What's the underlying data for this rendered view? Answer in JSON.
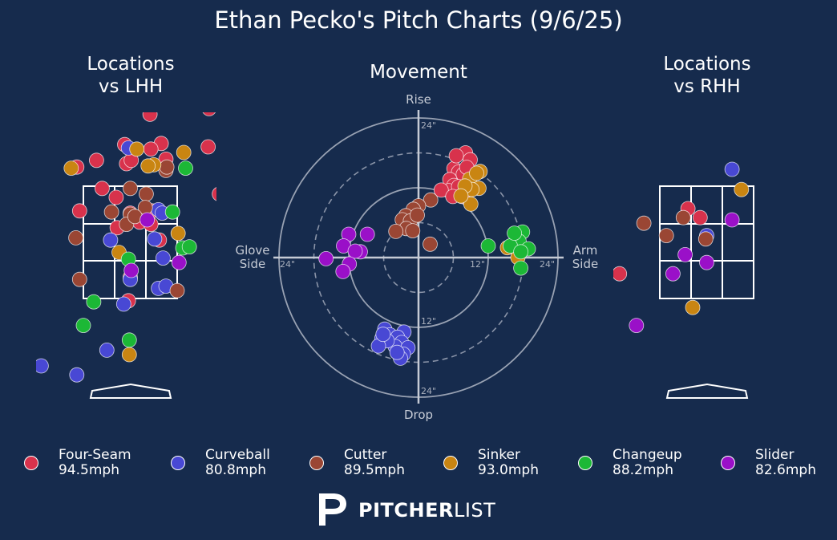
{
  "title": "Ethan Pecko's Pitch Charts (9/6/25)",
  "panels": {
    "lhh": {
      "title_line1": "Locations",
      "title_line2": "vs LHH"
    },
    "movement": {
      "title": "Movement"
    },
    "rhh": {
      "title_line1": "Locations",
      "title_line2": "vs RHH"
    }
  },
  "movement_labels": {
    "top": "Rise",
    "bottom": "Drop",
    "left_line1": "Glove",
    "left_line2": "Side",
    "right_line1": "Arm",
    "right_line2": "Side",
    "ring_labels": {
      "r24_top": "24\"",
      "r24_bottom": "24\"",
      "r12_bottom": "12\"",
      "r12_right": "12\"",
      "r24_right": "24\"",
      "r24_left": "24\""
    }
  },
  "colors": {
    "background": "#162b4d",
    "Four-Seam": "#d8324c",
    "Curveball": "#4848d4",
    "Cutter": "#9a4634",
    "Sinker": "#c98512",
    "Changeup": "#1cb836",
    "Slider": "#9a10c8"
  },
  "legend": [
    {
      "pitch": "Four-Seam",
      "speed": "94.5mph"
    },
    {
      "pitch": "Curveball",
      "speed": "80.8mph"
    },
    {
      "pitch": "Cutter",
      "speed": "89.5mph"
    },
    {
      "pitch": "Sinker",
      "speed": "93.0mph"
    },
    {
      "pitch": "Changeup",
      "speed": "88.2mph"
    },
    {
      "pitch": "Slider",
      "speed": "82.6mph"
    }
  ],
  "brand": {
    "bold": "PITCHER",
    "light": "LIST"
  },
  "chart_data": [
    {
      "type": "scatter",
      "title": "Locations vs LHH",
      "x_unit": "strike-zone widths from center (zone = -0.5..0.5)",
      "y_unit": "strike-zone heights from bottom (zone = 0..1)",
      "xlim": [
        -0.95,
        0.92
      ],
      "ylim": [
        -0.88,
        1.87
      ],
      "points": [
        [
          "Four-Seam",
          -0.17,
          1.74
        ],
        [
          "Four-Seam",
          0.33,
          1.77
        ],
        [
          "Four-Seam",
          0.21,
          1.64
        ],
        [
          "Four-Seam",
          0.84,
          1.69
        ],
        [
          "Four-Seam",
          -0.06,
          1.37
        ],
        [
          "Four-Seam",
          0.33,
          1.38
        ],
        [
          "Four-Seam",
          0.22,
          1.33
        ],
        [
          "Four-Seam",
          -0.36,
          1.23
        ],
        [
          "Four-Seam",
          -0.04,
          1.2
        ],
        [
          "Four-Seam",
          0.01,
          1.23
        ],
        [
          "Four-Seam",
          0.38,
          1.24
        ],
        [
          "Four-Seam",
          0.83,
          1.35
        ],
        [
          "Four-Seam",
          -0.57,
          1.17
        ],
        [
          "Four-Seam",
          -0.3,
          0.98
        ],
        [
          "Four-Seam",
          -0.15,
          0.9
        ],
        [
          "Four-Seam",
          -0.54,
          0.78
        ],
        [
          "Four-Seam",
          0.0,
          0.76
        ],
        [
          "Four-Seam",
          0.1,
          0.68
        ],
        [
          "Four-Seam",
          0.22,
          0.66
        ],
        [
          "Four-Seam",
          -0.14,
          0.63
        ],
        [
          "Four-Seam",
          0.31,
          0.52
        ],
        [
          "Four-Seam",
          0.95,
          0.93
        ],
        [
          "Four-Seam",
          0.0,
          0.19
        ],
        [
          "Four-Seam",
          -0.02,
          -0.02
        ],
        [
          "Four-Seam",
          0.23,
          0.78
        ],
        [
          "Curveball",
          -0.02,
          1.34
        ],
        [
          "Curveball",
          0.3,
          0.79
        ],
        [
          "Curveball",
          0.26,
          0.53
        ],
        [
          "Curveball",
          0.35,
          0.36
        ],
        [
          "Curveball",
          -0.21,
          0.52
        ],
        [
          "Curveball",
          0.0,
          0.17
        ],
        [
          "Curveball",
          0.3,
          0.09
        ],
        [
          "Curveball",
          0.38,
          0.11
        ],
        [
          "Curveball",
          -0.07,
          -0.05
        ],
        [
          "Curveball",
          -0.25,
          -0.46
        ],
        [
          "Curveball",
          -0.57,
          -0.68
        ],
        [
          "Curveball",
          -0.95,
          -0.6
        ],
        [
          "Curveball",
          0.34,
          0.76
        ],
        [
          "Cutter",
          0.38,
          1.14
        ],
        [
          "Cutter",
          0.0,
          0.98
        ],
        [
          "Cutter",
          0.17,
          0.93
        ],
        [
          "Cutter",
          -0.2,
          0.77
        ],
        [
          "Cutter",
          0.0,
          0.75
        ],
        [
          "Cutter",
          -0.04,
          0.66
        ],
        [
          "Cutter",
          0.16,
          0.81
        ],
        [
          "Cutter",
          -0.58,
          0.54
        ],
        [
          "Cutter",
          -0.54,
          0.17
        ],
        [
          "Cutter",
          0.5,
          0.07
        ],
        [
          "Cutter",
          0.39,
          1.17
        ],
        [
          "Cutter",
          0.05,
          0.73
        ],
        [
          "Sinker",
          -0.17,
          1.73
        ],
        [
          "Sinker",
          0.07,
          1.33
        ],
        [
          "Sinker",
          0.25,
          1.19
        ],
        [
          "Sinker",
          0.57,
          1.3
        ],
        [
          "Sinker",
          -0.63,
          1.16
        ],
        [
          "Sinker",
          0.51,
          0.58
        ],
        [
          "Sinker",
          -0.12,
          0.41
        ],
        [
          "Sinker",
          0.19,
          1.18
        ],
        [
          "Sinker",
          -0.01,
          -0.5
        ],
        [
          "Changeup",
          0.59,
          1.16
        ],
        [
          "Changeup",
          0.45,
          0.77
        ],
        [
          "Changeup",
          0.56,
          0.45
        ],
        [
          "Changeup",
          0.63,
          0.46
        ],
        [
          "Changeup",
          -0.02,
          0.35
        ],
        [
          "Changeup",
          -0.39,
          -0.03
        ],
        [
          "Changeup",
          -0.5,
          -0.24
        ],
        [
          "Changeup",
          -0.01,
          -0.37
        ],
        [
          "Slider",
          0.18,
          0.7
        ],
        [
          "Slider",
          0.52,
          0.32
        ],
        [
          "Slider",
          0.01,
          0.25
        ]
      ]
    },
    {
      "type": "scatter",
      "title": "Movement",
      "x_unit": "inches of horizontal break (+ = Arm Side)",
      "y_unit": "inches of induced vertical break (+ = Rise)",
      "xlim": [
        -24,
        24
      ],
      "ylim": [
        -24,
        24
      ],
      "rings": [
        12,
        24
      ],
      "dashed_rings": [
        6,
        18
      ],
      "points": [
        [
          "Four-Seam",
          8.1,
          18.0
        ],
        [
          "Four-Seam",
          8.9,
          16.8
        ],
        [
          "Four-Seam",
          6.1,
          15.3
        ],
        [
          "Four-Seam",
          6.9,
          14.7
        ],
        [
          "Four-Seam",
          5.4,
          13.4
        ],
        [
          "Four-Seam",
          6.1,
          12.4
        ],
        [
          "Four-Seam",
          5.2,
          11.5
        ],
        [
          "Four-Seam",
          6.8,
          11.0
        ],
        [
          "Four-Seam",
          7.5,
          10.5
        ],
        [
          "Four-Seam",
          8.5,
          13.1
        ],
        [
          "Four-Seam",
          3.9,
          11.6
        ],
        [
          "Four-Seam",
          7.7,
          14.3
        ],
        [
          "Four-Seam",
          8.3,
          15.5
        ],
        [
          "Four-Seam",
          6.5,
          17.5
        ],
        [
          "Four-Seam",
          6.9,
          12.2
        ],
        [
          "Four-Seam",
          5.9,
          10.5
        ],
        [
          "Curveball",
          -5.8,
          -12.3
        ],
        [
          "Curveball",
          -4.9,
          -13.3
        ],
        [
          "Curveball",
          -6.3,
          -13.9
        ],
        [
          "Curveball",
          -2.5,
          -12.8
        ],
        [
          "Curveball",
          -3.6,
          -13.7
        ],
        [
          "Curveball",
          -2.9,
          -14.6
        ],
        [
          "Curveball",
          -4.0,
          -15.3
        ],
        [
          "Curveball",
          -5.4,
          -14.3
        ],
        [
          "Curveball",
          -6.9,
          -15.2
        ],
        [
          "Curveball",
          -1.8,
          -15.5
        ],
        [
          "Curveball",
          -2.6,
          -16.6
        ],
        [
          "Curveball",
          -3.1,
          -17.3
        ],
        [
          "Curveball",
          -3.7,
          -16.3
        ],
        [
          "Curveball",
          -6.1,
          -13.2
        ],
        [
          "Cutter",
          2.1,
          9.9
        ],
        [
          "Cutter",
          0.0,
          8.9
        ],
        [
          "Cutter",
          -0.9,
          8.3
        ],
        [
          "Cutter",
          -2.2,
          7.2
        ],
        [
          "Cutter",
          -2.8,
          6.5
        ],
        [
          "Cutter",
          -1.4,
          6.3
        ],
        [
          "Cutter",
          -2.1,
          5.0
        ],
        [
          "Cutter",
          -1.0,
          4.6
        ],
        [
          "Cutter",
          -0.2,
          7.3
        ],
        [
          "Cutter",
          -3.9,
          4.5
        ],
        [
          "Cutter",
          2.0,
          2.3
        ],
        [
          "Sinker",
          10.6,
          14.8
        ],
        [
          "Sinker",
          8.8,
          13.5
        ],
        [
          "Sinker",
          10.4,
          11.9
        ],
        [
          "Sinker",
          9.2,
          11.7
        ],
        [
          "Sinker",
          8.0,
          12.3
        ],
        [
          "Sinker",
          9.0,
          9.2
        ],
        [
          "Sinker",
          10.0,
          14.5
        ],
        [
          "Sinker",
          7.3,
          10.6
        ],
        [
          "Sinker",
          15.3,
          1.7
        ],
        [
          "Sinker",
          17.1,
          0.0
        ],
        [
          "Changeup",
          17.9,
          4.4
        ],
        [
          "Changeup",
          17.3,
          2.8
        ],
        [
          "Changeup",
          15.8,
          2.0
        ],
        [
          "Changeup",
          18.9,
          1.5
        ],
        [
          "Changeup",
          17.6,
          1.0
        ],
        [
          "Changeup",
          17.6,
          -1.8
        ],
        [
          "Changeup",
          12.0,
          2.0
        ],
        [
          "Changeup",
          16.5,
          4.2
        ],
        [
          "Slider",
          -12.0,
          4.0
        ],
        [
          "Slider",
          -8.8,
          4.0
        ],
        [
          "Slider",
          -12.9,
          2.0
        ],
        [
          "Slider",
          -10.0,
          1.0
        ],
        [
          "Slider",
          -10.9,
          1.1
        ],
        [
          "Slider",
          -15.9,
          -0.2
        ],
        [
          "Slider",
          -11.9,
          -1.1
        ],
        [
          "Slider",
          -13.0,
          -2.4
        ]
      ]
    },
    {
      "type": "scatter",
      "title": "Locations vs RHH",
      "x_unit": "strike-zone widths from center (zone = -0.5..0.5)",
      "y_unit": "strike-zone heights from bottom (zone = 0..1)",
      "xlim": [
        -0.95,
        0.92
      ],
      "ylim": [
        -0.88,
        1.87
      ],
      "points": [
        [
          "Curveball",
          0.27,
          1.15
        ],
        [
          "Curveball",
          0.0,
          0.56
        ],
        [
          "Four-Seam",
          -0.2,
          0.8
        ],
        [
          "Four-Seam",
          -0.07,
          0.72
        ],
        [
          "Four-Seam",
          -0.93,
          0.22
        ],
        [
          "Cutter",
          -0.67,
          0.67
        ],
        [
          "Cutter",
          -0.25,
          0.72
        ],
        [
          "Cutter",
          -0.43,
          0.56
        ],
        [
          "Cutter",
          -0.01,
          0.53
        ],
        [
          "Sinker",
          0.37,
          0.97
        ],
        [
          "Sinker",
          -0.15,
          -0.08
        ],
        [
          "Slider",
          0.27,
          0.7
        ],
        [
          "Slider",
          -0.23,
          0.39
        ],
        [
          "Slider",
          0.0,
          0.32
        ],
        [
          "Slider",
          -0.36,
          0.22
        ],
        [
          "Slider",
          -0.75,
          -0.24
        ]
      ]
    }
  ]
}
